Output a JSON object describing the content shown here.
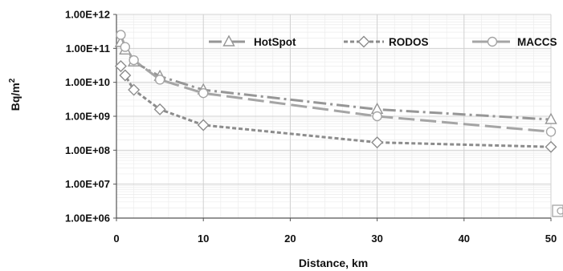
{
  "chart_data": {
    "type": "line",
    "xlabel": "Distance,  km",
    "ylabel_main": "Bq/m",
    "ylabel_sup": "2",
    "yscale": "log",
    "xlim": [
      0,
      50
    ],
    "ylim": [
      1000000,
      1000000000000
    ],
    "x_ticks": [
      0,
      10,
      20,
      30,
      40,
      50
    ],
    "y_ticks": [
      1000000,
      10000000,
      100000000,
      1000000000,
      10000000000,
      100000000000,
      1000000000000
    ],
    "y_tick_labels": [
      "1.00E+06",
      "1.00E+07",
      "1.00E+08",
      "1.00E+09",
      "1.00E+10",
      "1.00E+11",
      "1.00E+12"
    ],
    "grid": true,
    "legend_position": "top",
    "series": [
      {
        "name": "HotSpot",
        "marker": "triangle",
        "line_style": "dash-dot",
        "color": "#969696",
        "x": [
          0.5,
          1,
          2,
          5,
          10,
          30,
          50
        ],
        "y": [
          150000000000,
          90000000000,
          40000000000,
          15000000000,
          6000000000,
          1600000000,
          800000000
        ]
      },
      {
        "name": "RODOS",
        "marker": "diamond",
        "line_style": "dotted",
        "color": "#8c8c8c",
        "x": [
          0.5,
          1,
          2,
          5,
          10,
          30,
          50
        ],
        "y": [
          30000000000,
          16000000000,
          6000000000,
          1600000000,
          550000000,
          170000000,
          125000000
        ]
      },
      {
        "name": "MACCS",
        "marker": "circle",
        "line_style": "long-dash",
        "color": "#a5a5a5",
        "x": [
          0.5,
          1,
          2,
          5,
          10,
          30,
          50
        ],
        "y": [
          250000000000,
          110000000000,
          45000000000,
          12000000000,
          4800000000,
          1000000000,
          350000000
        ]
      }
    ]
  }
}
